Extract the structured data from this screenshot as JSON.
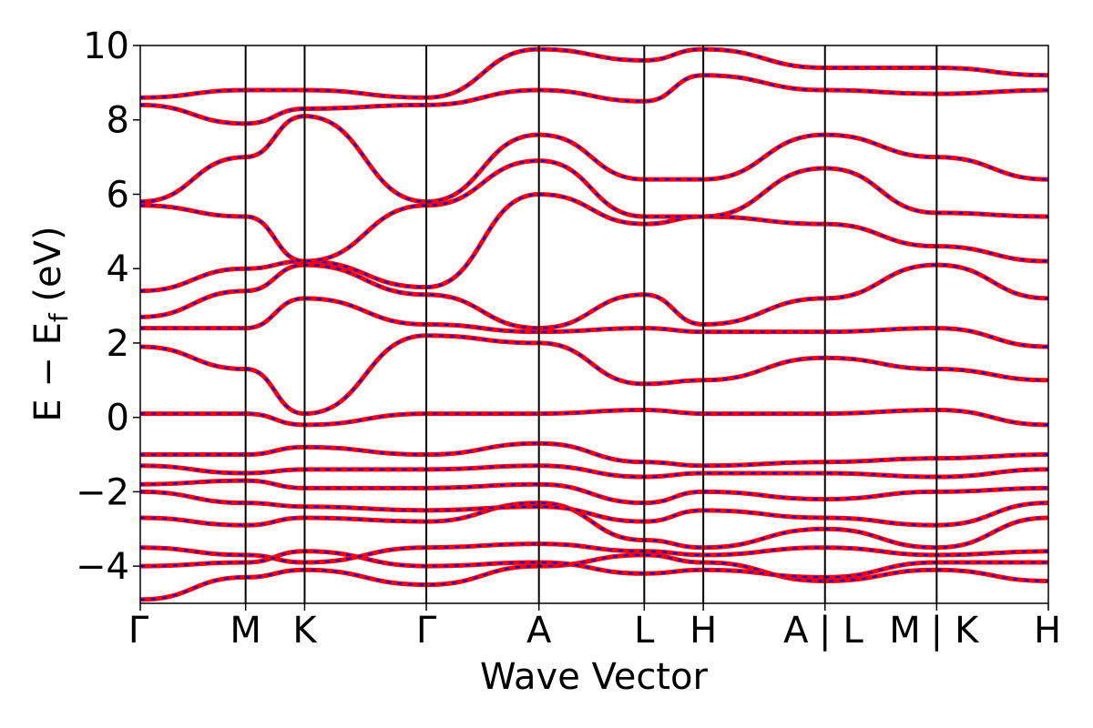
{
  "chart_data": {
    "type": "line",
    "title": "",
    "xlabel": "Wave Vector",
    "ylabel": "E − Eₑ (eV)",
    "ylabel_parts": {
      "main": "E − E",
      "sub": "f",
      "unit": " (eV)"
    },
    "ylim": [
      -5,
      10
    ],
    "yticks": [
      -4,
      -2,
      0,
      2,
      4,
      6,
      8,
      10
    ],
    "ytick_labels": [
      "−4",
      "−2",
      "0",
      "2",
      "4",
      "6",
      "8",
      "10"
    ],
    "grid": false,
    "colors": {
      "red": "#ff0000",
      "blue": "#0000ff"
    },
    "kpath": [
      {
        "label": "Γ",
        "x": 0.0
      },
      {
        "label": "M",
        "x": 0.116
      },
      {
        "label": "K",
        "x": 0.181
      },
      {
        "label": "Γ",
        "x": 0.315
      },
      {
        "label": "A",
        "x": 0.439
      },
      {
        "label": "L",
        "x": 0.555
      },
      {
        "label": "H",
        "x": 0.62
      },
      {
        "label": "A | L",
        "x": 0.754
      },
      {
        "label": "M | K",
        "x": 0.877
      },
      {
        "label": "H",
        "x": 1.0
      }
    ],
    "tick_labels_display": [
      {
        "text": "Γ",
        "x": 0.0
      },
      {
        "text": "M",
        "x": 0.116
      },
      {
        "text": "K",
        "x": 0.181
      },
      {
        "text": "Γ",
        "x": 0.315
      },
      {
        "text": "A",
        "x": 0.439
      },
      {
        "text": "L",
        "x": 0.555
      },
      {
        "text": "H",
        "x": 0.62
      },
      {
        "text": "A",
        "x": 0.722
      },
      {
        "text": "|",
        "x": 0.754
      },
      {
        "text": "L",
        "x": 0.785
      },
      {
        "text": "M",
        "x": 0.842
      },
      {
        "text": "|",
        "x": 0.877
      },
      {
        "text": "K",
        "x": 0.91
      },
      {
        "text": "H",
        "x": 1.0
      }
    ],
    "series_note_a": "red solid",
    "series_note_b": "blue dashed",
    "bands": [
      [
        -4.9,
        -4.3,
        -4.1,
        -4.5,
        -4.0,
        -3.7,
        -3.9,
        -4.4,
        -4.1,
        -4.4
      ],
      [
        -4.0,
        -3.9,
        -3.6,
        -4.0,
        -3.9,
        -4.2,
        -4.1,
        -4.3,
        -3.9,
        -3.9
      ],
      [
        -3.5,
        -3.7,
        -3.9,
        -3.5,
        -3.4,
        -3.6,
        -3.7,
        -3.5,
        -3.7,
        -3.6
      ],
      [
        -2.7,
        -2.9,
        -2.7,
        -2.8,
        -2.3,
        -3.3,
        -3.5,
        -3.0,
        -3.5,
        -2.7
      ],
      [
        -2.0,
        -2.3,
        -2.4,
        -2.5,
        -2.4,
        -2.8,
        -2.5,
        -2.7,
        -2.9,
        -2.3
      ],
      [
        -1.8,
        -1.7,
        -1.9,
        -1.9,
        -1.8,
        -2.3,
        -2.0,
        -2.2,
        -2.0,
        -1.9
      ],
      [
        -1.3,
        -1.5,
        -1.4,
        -1.4,
        -1.3,
        -1.6,
        -1.5,
        -1.5,
        -1.6,
        -1.4
      ],
      [
        -1.0,
        -1.0,
        -0.8,
        -1.0,
        -0.7,
        -1.2,
        -1.3,
        -1.2,
        -1.1,
        -1.0
      ],
      [
        0.1,
        0.1,
        -0.2,
        0.1,
        0.1,
        0.2,
        0.1,
        0.1,
        0.2,
        -0.2
      ],
      [
        1.9,
        1.3,
        0.1,
        2.2,
        2.0,
        0.9,
        1.0,
        1.6,
        1.3,
        1.0
      ],
      [
        2.4,
        2.4,
        3.2,
        2.5,
        2.3,
        2.4,
        2.3,
        2.3,
        2.4,
        1.9
      ],
      [
        2.7,
        3.4,
        4.1,
        3.3,
        2.4,
        3.3,
        2.5,
        3.2,
        4.1,
        3.2
      ],
      [
        3.4,
        4.0,
        4.2,
        3.5,
        6.0,
        5.2,
        5.4,
        5.2,
        4.6,
        4.2
      ],
      [
        5.7,
        5.4,
        4.2,
        5.7,
        6.9,
        5.4,
        5.4,
        6.7,
        5.5,
        5.4
      ],
      [
        5.8,
        7.0,
        8.1,
        5.8,
        7.6,
        6.4,
        6.4,
        7.6,
        7.0,
        6.4
      ],
      [
        8.4,
        7.9,
        8.3,
        8.4,
        8.8,
        8.5,
        9.2,
        8.8,
        8.7,
        8.8
      ],
      [
        8.6,
        8.8,
        8.8,
        8.6,
        9.9,
        9.6,
        9.9,
        9.4,
        9.4,
        9.2
      ]
    ]
  }
}
